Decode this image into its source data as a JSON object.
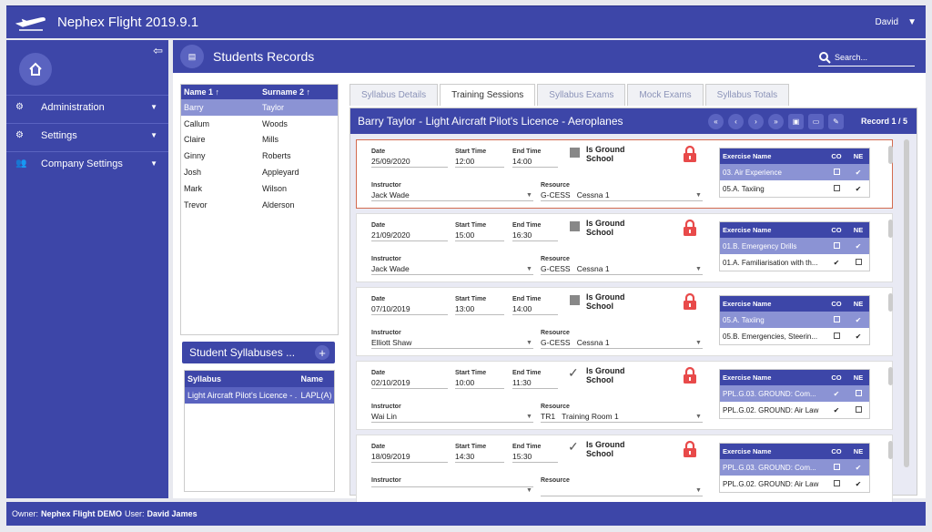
{
  "app": {
    "title": "Nephex Flight 2019.9.1",
    "user": "David"
  },
  "sidebar": {
    "items": [
      {
        "label": "Administration",
        "icon": "gear-icon"
      },
      {
        "label": "Settings",
        "icon": "gears-icon"
      },
      {
        "label": "Company Settings",
        "icon": "users-icon"
      }
    ]
  },
  "header": {
    "title": "Students Records",
    "search_placeholder": "Search..."
  },
  "students": {
    "columns": [
      "Name 1",
      "Surname 2"
    ],
    "rows": [
      [
        "Barry",
        "Taylor"
      ],
      [
        "Callum",
        "Woods"
      ],
      [
        "Claire",
        "Mills"
      ],
      [
        "Ginny",
        "Roberts"
      ],
      [
        "Josh",
        "Appleyard"
      ],
      [
        "Mark",
        "Wilson"
      ],
      [
        "Trevor",
        "Alderson"
      ]
    ]
  },
  "syllabuses": {
    "title": "Student Syllabuses ...",
    "columns": [
      "Syllabus",
      "Name"
    ],
    "rows": [
      [
        "Light Aircraft Pilot's Licence - ...",
        "LAPL(A)"
      ]
    ]
  },
  "tabs": [
    "Syllabus Details",
    "Training Sessions",
    "Syllabus Exams",
    "Mock Exams",
    "Syllabus Totals"
  ],
  "sessions": {
    "title": "Barry Taylor - Light Aircraft Pilot's Licence - Aeroplanes",
    "record": "Record 1 / 5",
    "labels": {
      "date": "Date",
      "start": "Start Time",
      "end": "End Time",
      "instructor": "Instructor",
      "resource": "Resource",
      "ground": "Is Ground",
      "ground2": "School"
    },
    "exercise_columns": [
      "Exercise Name",
      "CO",
      "NE"
    ],
    "cards": [
      {
        "date": "25/09/2020",
        "start": "12:00",
        "end": "14:00",
        "instructor": "Jack Wade",
        "res_code": "G-CESS",
        "res_name": "Cessna 1",
        "ground": false,
        "exercises": [
          {
            "name": "03. Air Experience",
            "co": "☐",
            "ne": "✔"
          },
          {
            "name": "05.A. Taxiing",
            "co": "☐",
            "ne": "✔"
          }
        ]
      },
      {
        "date": "21/09/2020",
        "start": "15:00",
        "end": "16:30",
        "instructor": "Jack Wade",
        "res_code": "G-CESS",
        "res_name": "Cessna 1",
        "ground": false,
        "exercises": [
          {
            "name": "01.B. Emergency Drills",
            "co": "☐",
            "ne": "✔"
          },
          {
            "name": "01.A. Familiarisation with th...",
            "co": "✔",
            "ne": "☐"
          }
        ]
      },
      {
        "date": "07/10/2019",
        "start": "13:00",
        "end": "14:00",
        "instructor": "Elliott Shaw",
        "res_code": "G-CESS",
        "res_name": "Cessna 1",
        "ground": false,
        "exercises": [
          {
            "name": "05.A. Taxiing",
            "co": "☐",
            "ne": "✔"
          },
          {
            "name": "05.B. Emergencies, Steerin...",
            "co": "☐",
            "ne": "✔"
          }
        ]
      },
      {
        "date": "02/10/2019",
        "start": "10:00",
        "end": "11:30",
        "instructor": "Wai Lin",
        "res_code": "TR1",
        "res_name": "Training Room 1",
        "ground": true,
        "exercises": [
          {
            "name": "PPL.G.03. GROUND: Com...",
            "co": "✔",
            "ne": "☐"
          },
          {
            "name": "PPL.G.02. GROUND: Air Law",
            "co": "✔",
            "ne": "☐"
          }
        ]
      },
      {
        "date": "18/09/2019",
        "start": "14:30",
        "end": "15:30",
        "instructor": "",
        "res_code": "",
        "res_name": "",
        "ground": true,
        "exercises": [
          {
            "name": "PPL.G.03. GROUND: Com...",
            "co": "☐",
            "ne": "✔"
          },
          {
            "name": "PPL.G.02. GROUND: Air Law",
            "co": "☐",
            "ne": "✔"
          }
        ]
      }
    ]
  },
  "footer": {
    "owner_label": "Owner:",
    "owner": "Nephex Flight DEMO",
    "user_label": "User:",
    "user": "David James"
  },
  "colors": {
    "primary": "#3d46a8",
    "selected": "#8b93d4",
    "lock": "#e84a4a"
  }
}
